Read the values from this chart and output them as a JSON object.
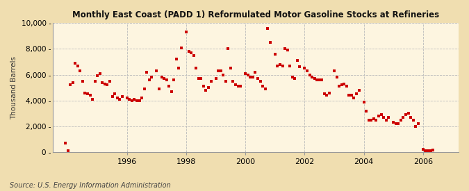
{
  "title": "Monthly East Coast (PADD 1) Reformulated Motor Gasoline Stocks at Refineries",
  "ylabel": "Thousand Barrels",
  "source": "Source: U.S. Energy Information Administration",
  "fig_background_color": "#f0deb0",
  "plot_background_color": "#fdf5e0",
  "marker_color": "#cc0000",
  "grid_color": "#bbbbbb",
  "xlim_left": 1993.5,
  "xlim_right": 2007.2,
  "ylim_bottom": 0,
  "ylim_top": 10000,
  "yticks": [
    0,
    2000,
    4000,
    6000,
    8000,
    10000
  ],
  "xticks": [
    1996,
    1998,
    2000,
    2002,
    2004,
    2006
  ],
  "data": [
    [
      1993.917,
      700
    ],
    [
      1994.0,
      100
    ],
    [
      1994.083,
      5200
    ],
    [
      1994.167,
      5400
    ],
    [
      1994.25,
      6900
    ],
    [
      1994.333,
      6700
    ],
    [
      1994.417,
      6300
    ],
    [
      1994.5,
      5500
    ],
    [
      1994.583,
      4600
    ],
    [
      1994.667,
      4500
    ],
    [
      1994.75,
      4400
    ],
    [
      1994.833,
      4100
    ],
    [
      1994.917,
      5500
    ],
    [
      1995.0,
      5900
    ],
    [
      1995.083,
      6100
    ],
    [
      1995.167,
      5400
    ],
    [
      1995.25,
      5300
    ],
    [
      1995.333,
      5200
    ],
    [
      1995.417,
      5500
    ],
    [
      1995.5,
      4300
    ],
    [
      1995.583,
      4500
    ],
    [
      1995.667,
      4200
    ],
    [
      1995.75,
      4100
    ],
    [
      1995.833,
      4300
    ],
    [
      1996.0,
      4200
    ],
    [
      1996.083,
      4100
    ],
    [
      1996.167,
      4000
    ],
    [
      1996.25,
      4100
    ],
    [
      1996.333,
      4000
    ],
    [
      1996.417,
      4000
    ],
    [
      1996.5,
      4200
    ],
    [
      1996.583,
      4900
    ],
    [
      1996.667,
      6200
    ],
    [
      1996.75,
      5600
    ],
    [
      1996.833,
      5800
    ],
    [
      1997.0,
      6300
    ],
    [
      1997.083,
      4900
    ],
    [
      1997.167,
      5800
    ],
    [
      1997.25,
      5700
    ],
    [
      1997.333,
      5600
    ],
    [
      1997.417,
      5100
    ],
    [
      1997.5,
      4700
    ],
    [
      1997.583,
      5600
    ],
    [
      1997.667,
      7200
    ],
    [
      1997.75,
      6500
    ],
    [
      1997.833,
      8100
    ],
    [
      1998.0,
      9300
    ],
    [
      1998.083,
      7800
    ],
    [
      1998.167,
      7700
    ],
    [
      1998.25,
      7500
    ],
    [
      1998.333,
      6500
    ],
    [
      1998.417,
      5700
    ],
    [
      1998.5,
      5700
    ],
    [
      1998.583,
      5100
    ],
    [
      1998.667,
      4800
    ],
    [
      1998.75,
      5000
    ],
    [
      1998.833,
      5500
    ],
    [
      1999.0,
      5700
    ],
    [
      1999.083,
      6300
    ],
    [
      1999.167,
      6300
    ],
    [
      1999.25,
      6000
    ],
    [
      1999.333,
      5500
    ],
    [
      1999.417,
      8000
    ],
    [
      1999.5,
      6500
    ],
    [
      1999.583,
      5500
    ],
    [
      1999.667,
      5200
    ],
    [
      1999.75,
      5100
    ],
    [
      1999.833,
      5100
    ],
    [
      2000.0,
      6100
    ],
    [
      2000.083,
      6000
    ],
    [
      2000.167,
      5800
    ],
    [
      2000.25,
      5800
    ],
    [
      2000.333,
      6200
    ],
    [
      2000.417,
      5700
    ],
    [
      2000.5,
      5500
    ],
    [
      2000.583,
      5100
    ],
    [
      2000.667,
      4900
    ],
    [
      2000.75,
      9600
    ],
    [
      2000.833,
      8500
    ],
    [
      2001.0,
      7600
    ],
    [
      2001.083,
      6700
    ],
    [
      2001.167,
      6800
    ],
    [
      2001.25,
      6700
    ],
    [
      2001.333,
      8000
    ],
    [
      2001.417,
      7900
    ],
    [
      2001.5,
      6700
    ],
    [
      2001.583,
      5800
    ],
    [
      2001.667,
      5700
    ],
    [
      2001.75,
      7100
    ],
    [
      2001.833,
      6600
    ],
    [
      2002.0,
      6500
    ],
    [
      2002.083,
      6300
    ],
    [
      2002.167,
      6000
    ],
    [
      2002.25,
      5800
    ],
    [
      2002.333,
      5700
    ],
    [
      2002.417,
      5600
    ],
    [
      2002.5,
      5600
    ],
    [
      2002.583,
      5600
    ],
    [
      2002.667,
      4500
    ],
    [
      2002.75,
      4400
    ],
    [
      2002.833,
      4600
    ],
    [
      2003.0,
      6300
    ],
    [
      2003.083,
      5800
    ],
    [
      2003.167,
      5100
    ],
    [
      2003.25,
      5200
    ],
    [
      2003.333,
      5300
    ],
    [
      2003.417,
      5100
    ],
    [
      2003.5,
      4400
    ],
    [
      2003.583,
      4400
    ],
    [
      2003.667,
      4200
    ],
    [
      2003.75,
      4500
    ],
    [
      2003.833,
      4800
    ],
    [
      2004.0,
      3900
    ],
    [
      2004.083,
      3200
    ],
    [
      2004.167,
      2500
    ],
    [
      2004.25,
      2500
    ],
    [
      2004.333,
      2600
    ],
    [
      2004.417,
      2500
    ],
    [
      2004.5,
      2800
    ],
    [
      2004.583,
      2900
    ],
    [
      2004.667,
      2700
    ],
    [
      2004.75,
      2500
    ],
    [
      2004.833,
      2700
    ],
    [
      2005.0,
      2300
    ],
    [
      2005.083,
      2200
    ],
    [
      2005.167,
      2200
    ],
    [
      2005.25,
      2500
    ],
    [
      2005.333,
      2700
    ],
    [
      2005.417,
      2900
    ],
    [
      2005.5,
      3000
    ],
    [
      2005.583,
      2700
    ],
    [
      2005.667,
      2500
    ],
    [
      2005.75,
      2000
    ],
    [
      2005.833,
      2200
    ],
    [
      2006.0,
      200
    ],
    [
      2006.083,
      100
    ],
    [
      2006.167,
      100
    ],
    [
      2006.25,
      100
    ],
    [
      2006.333,
      150
    ]
  ]
}
